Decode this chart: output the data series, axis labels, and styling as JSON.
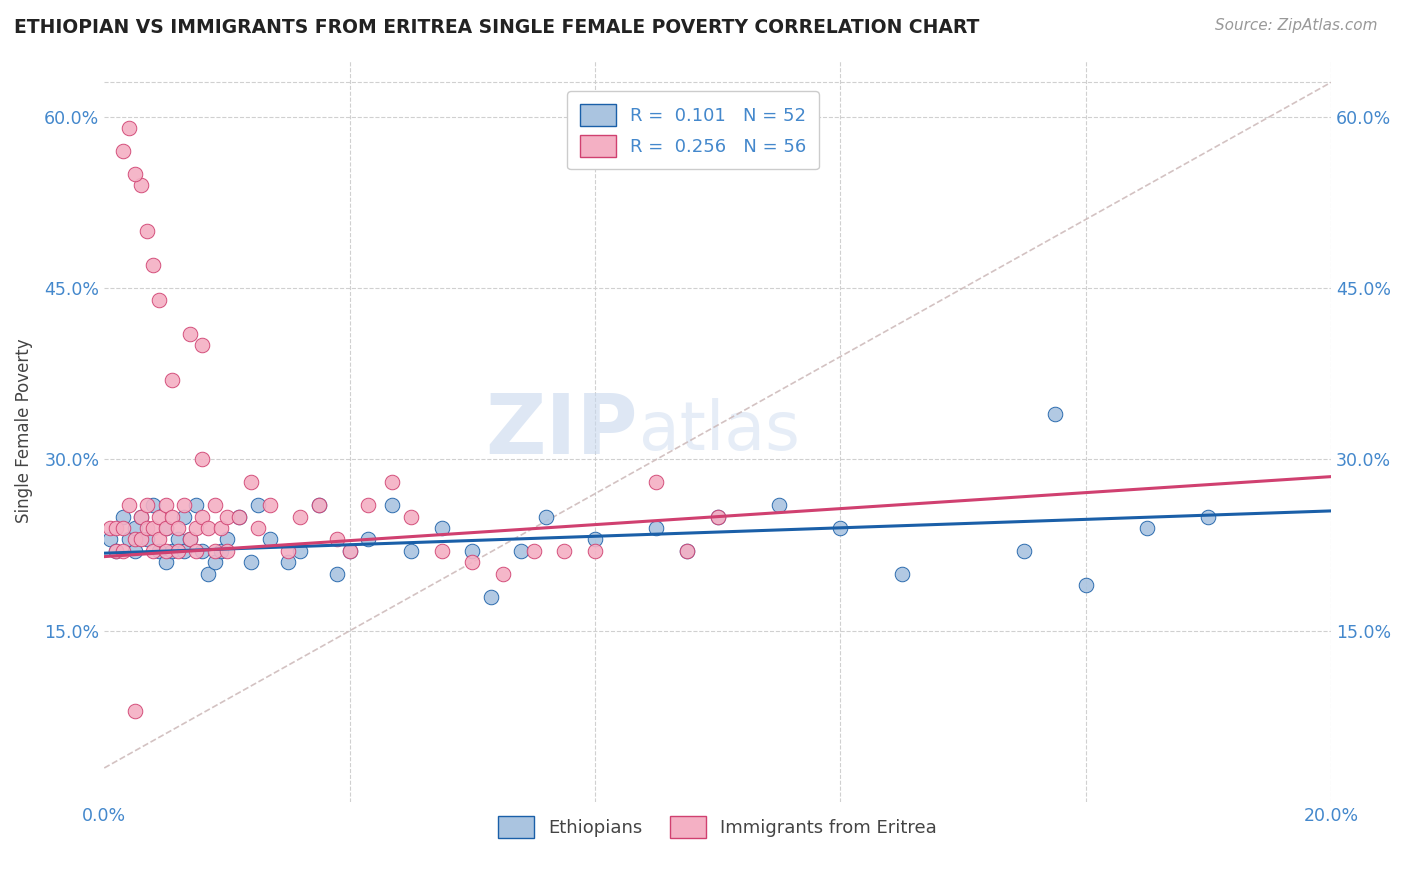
{
  "title": "ETHIOPIAN VS IMMIGRANTS FROM ERITREA SINGLE FEMALE POVERTY CORRELATION CHART",
  "source": "Source: ZipAtlas.com",
  "ylabel": "Single Female Poverty",
  "xlim": [
    0.0,
    0.2
  ],
  "ylim": [
    0.0,
    0.65
  ],
  "legend1_label": "R =  0.101   N = 52",
  "legend2_label": "R =  0.256   N = 56",
  "legend_bottom_label1": "Ethiopians",
  "legend_bottom_label2": "Immigrants from Eritrea",
  "watermark_zip": "ZIP",
  "watermark_atlas": "atlas",
  "ethiopians_color": "#aac4e0",
  "eritrea_color": "#f4b0c4",
  "trend_blue": "#1a5fa8",
  "trend_pink": "#d04070",
  "trend_dashed_color": "#ccb8b8",
  "tick_color": "#4488cc",
  "ethiopians_x": [
    0.001,
    0.002,
    0.003,
    0.004,
    0.005,
    0.005,
    0.006,
    0.007,
    0.008,
    0.009,
    0.01,
    0.01,
    0.011,
    0.012,
    0.013,
    0.013,
    0.014,
    0.015,
    0.016,
    0.017,
    0.018,
    0.019,
    0.02,
    0.022,
    0.024,
    0.025,
    0.027,
    0.03,
    0.032,
    0.035,
    0.038,
    0.04,
    0.043,
    0.047,
    0.05,
    0.055,
    0.06,
    0.063,
    0.068,
    0.072,
    0.08,
    0.09,
    0.095,
    0.1,
    0.11,
    0.12,
    0.13,
    0.15,
    0.16,
    0.17,
    0.18,
    0.155
  ],
  "ethiopians_y": [
    0.23,
    0.22,
    0.25,
    0.23,
    0.22,
    0.24,
    0.25,
    0.23,
    0.26,
    0.22,
    0.24,
    0.21,
    0.22,
    0.23,
    0.25,
    0.22,
    0.23,
    0.26,
    0.22,
    0.2,
    0.21,
    0.22,
    0.23,
    0.25,
    0.21,
    0.26,
    0.23,
    0.21,
    0.22,
    0.26,
    0.2,
    0.22,
    0.23,
    0.26,
    0.22,
    0.24,
    0.22,
    0.18,
    0.22,
    0.25,
    0.23,
    0.24,
    0.22,
    0.25,
    0.26,
    0.24,
    0.2,
    0.22,
    0.19,
    0.24,
    0.25,
    0.34
  ],
  "eritrea_x": [
    0.001,
    0.002,
    0.002,
    0.003,
    0.003,
    0.004,
    0.005,
    0.005,
    0.006,
    0.006,
    0.007,
    0.007,
    0.008,
    0.008,
    0.009,
    0.009,
    0.01,
    0.01,
    0.01,
    0.011,
    0.012,
    0.012,
    0.013,
    0.014,
    0.015,
    0.015,
    0.016,
    0.017,
    0.018,
    0.018,
    0.019,
    0.02,
    0.02,
    0.022,
    0.024,
    0.025,
    0.027,
    0.03,
    0.032,
    0.035,
    0.038,
    0.04,
    0.043,
    0.047,
    0.05,
    0.055,
    0.06,
    0.065,
    0.07,
    0.075,
    0.08,
    0.09,
    0.095,
    0.1,
    0.003,
    0.006
  ],
  "eritrea_y": [
    0.24,
    0.22,
    0.24,
    0.22,
    0.24,
    0.26,
    0.08,
    0.23,
    0.23,
    0.25,
    0.24,
    0.26,
    0.22,
    0.24,
    0.23,
    0.25,
    0.22,
    0.24,
    0.26,
    0.25,
    0.22,
    0.24,
    0.26,
    0.23,
    0.24,
    0.22,
    0.25,
    0.24,
    0.22,
    0.26,
    0.24,
    0.22,
    0.25,
    0.25,
    0.28,
    0.24,
    0.26,
    0.22,
    0.25,
    0.26,
    0.23,
    0.22,
    0.26,
    0.28,
    0.25,
    0.22,
    0.21,
    0.2,
    0.22,
    0.22,
    0.22,
    0.28,
    0.22,
    0.25,
    0.57,
    0.54
  ],
  "eritrea_outliers_x": [
    0.004,
    0.005,
    0.007,
    0.008,
    0.009,
    0.011,
    0.014,
    0.016,
    0.016
  ],
  "eritrea_outliers_y": [
    0.59,
    0.55,
    0.5,
    0.47,
    0.44,
    0.37,
    0.41,
    0.4,
    0.3
  ],
  "eth_trend_x0": 0.0,
  "eth_trend_y0": 0.218,
  "eth_trend_x1": 0.2,
  "eth_trend_y1": 0.255,
  "eri_trend_x0": 0.0,
  "eri_trend_y0": 0.215,
  "eri_trend_x1": 0.2,
  "eri_trend_y1": 0.285,
  "dash_line_x0": 0.0,
  "dash_line_y0": 0.03,
  "dash_line_x1": 0.2,
  "dash_line_y1": 0.63
}
